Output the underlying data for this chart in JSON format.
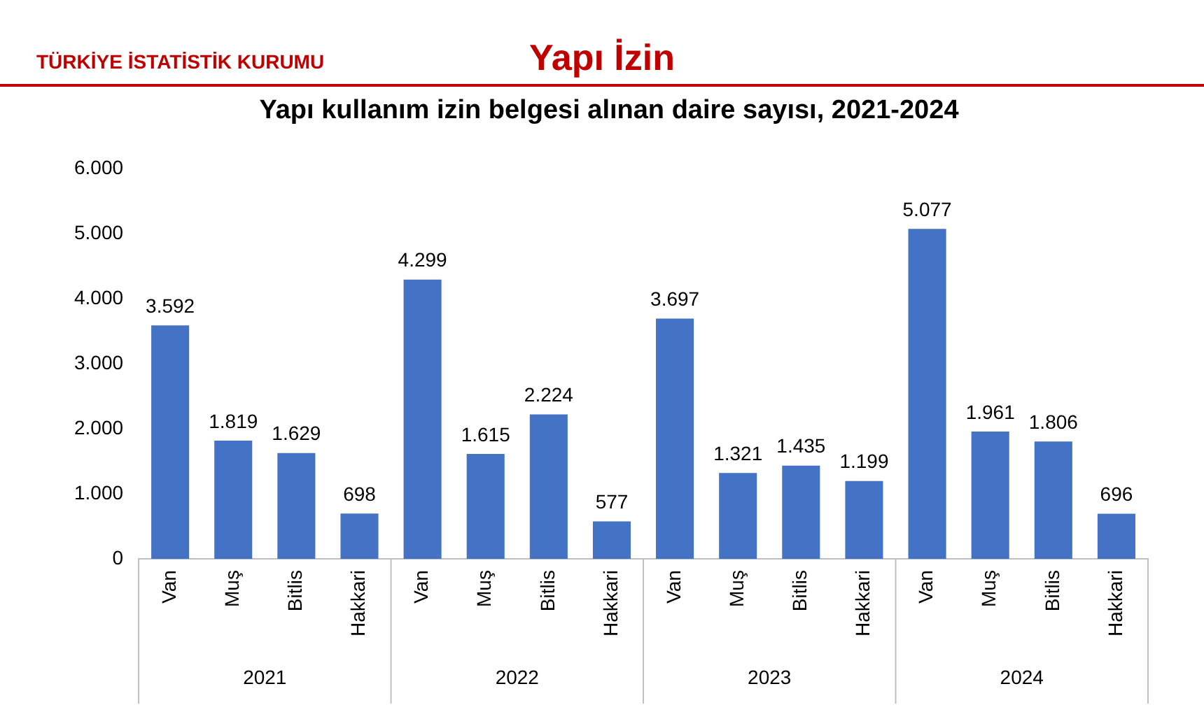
{
  "chart_data": {
    "type": "bar",
    "title": "Yapı kullanım izin belgesi alınan daire sayısı, 2021-2024",
    "categories": [
      "Van",
      "Muş",
      "Bitlis",
      "Hakkari",
      "Van",
      "Muş",
      "Bitlis",
      "Hakkari",
      "Van",
      "Muş",
      "Bitlis",
      "Hakkari",
      "Van",
      "Muş",
      "Bitlis",
      "Hakkari"
    ],
    "values": [
      3592,
      1819,
      1629,
      698,
      4299,
      1615,
      2224,
      577,
      3697,
      1321,
      1435,
      1199,
      5077,
      1961,
      1806,
      696
    ],
    "color": "#4472c4",
    "ylim": [
      0,
      6000
    ],
    "yticks": [
      0,
      {
        "value": 1000,
        "label": "1.000"
      },
      {
        "value": 2000,
        "label": "2.000"
      },
      {
        "value": 3000,
        "label": "3.000"
      },
      {
        "value": 4000,
        "label": "4.000"
      },
      {
        "value": 5000,
        "label": "5.000"
      },
      {
        "value": 6000,
        "label": "6.000"
      }
    ],
    "value_labels": [
      "3.592",
      "1.819",
      "1.629",
      "698",
      "4.299",
      "1.615",
      "2.224",
      "577",
      "3.697",
      "1.321",
      "1.435",
      "1.199",
      "5.077",
      "1.961",
      "1.806",
      "696"
    ],
    "grid": false,
    "legend": false,
    "annotations": [
      "TÜRKİYE İSTATİSTİK KURUMU",
      "Yapı İzin",
      "2021",
      "2022",
      "2023",
      "2024"
    ]
  }
}
